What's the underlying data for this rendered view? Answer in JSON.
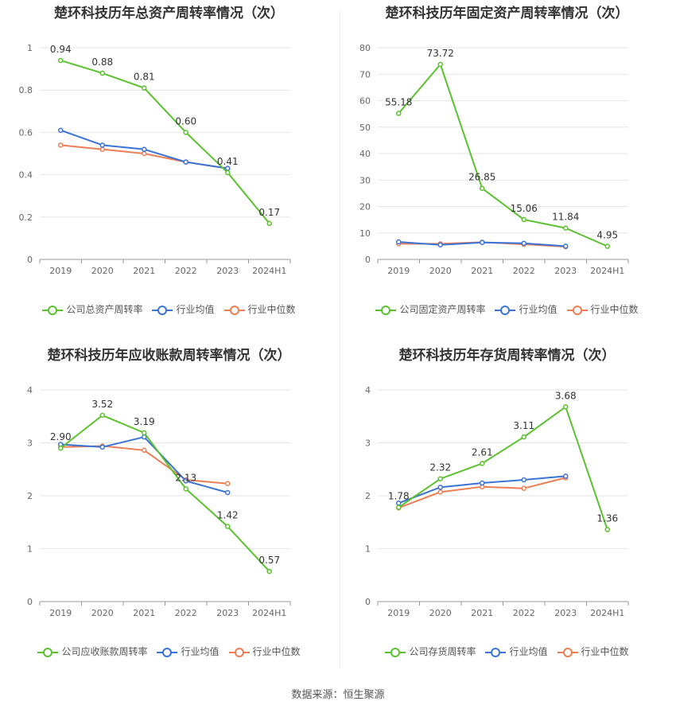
{
  "colors": {
    "company": "#5cc12f",
    "industry_avg": "#3b74d6",
    "industry_median": "#ec7f55",
    "grid": "#e6e6e6",
    "axis": "#999999"
  },
  "footer": {
    "source": "数据来源：恒生聚源"
  },
  "chart_data": [
    {
      "type": "line",
      "title": "楚环科技历年总资产周转率情况（次）",
      "categories": [
        "2019",
        "2020",
        "2021",
        "2022",
        "2023",
        "2024H1"
      ],
      "ylim": [
        0,
        1
      ],
      "yticks": [
        0,
        0.2,
        0.4,
        0.6,
        0.8,
        1
      ],
      "ytick_labels": [
        "0",
        "0.2",
        "0.4",
        "0.6",
        "0.8",
        "1"
      ],
      "grid": true,
      "legend_position": "bottom",
      "series": [
        {
          "name": "公司总资产周转率",
          "role": "company",
          "values": [
            0.94,
            0.88,
            0.81,
            0.6,
            0.41,
            0.17
          ],
          "labels": [
            "0.94",
            "0.88",
            "0.81",
            "0.60",
            "0.41",
            "0.17"
          ]
        },
        {
          "name": "行业均值",
          "role": "industry_avg",
          "values": [
            0.61,
            0.54,
            0.52,
            0.46,
            0.43,
            null
          ]
        },
        {
          "name": "行业中位数",
          "role": "industry_median",
          "values": [
            0.54,
            0.52,
            0.5,
            0.46,
            0.43,
            null
          ]
        }
      ]
    },
    {
      "type": "line",
      "title": "楚环科技历年固定资产周转率情况（次）",
      "categories": [
        "2019",
        "2020",
        "2021",
        "2022",
        "2023",
        "2024H1"
      ],
      "ylim": [
        0,
        80
      ],
      "yticks": [
        0,
        10,
        20,
        30,
        40,
        50,
        60,
        70,
        80
      ],
      "ytick_labels": [
        "0",
        "10",
        "20",
        "30",
        "40",
        "50",
        "60",
        "70",
        "80"
      ],
      "grid": true,
      "legend_position": "bottom",
      "series": [
        {
          "name": "公司固定资产周转率",
          "role": "company",
          "values": [
            55.18,
            73.72,
            26.85,
            15.06,
            11.84,
            4.95
          ],
          "labels": [
            "55.18",
            "73.72",
            "26.85",
            "15.06",
            "11.84",
            "4.95"
          ]
        },
        {
          "name": "行业均值",
          "role": "industry_avg",
          "values": [
            6.6,
            5.5,
            6.4,
            6.1,
            5.0,
            null
          ]
        },
        {
          "name": "行业中位数",
          "role": "industry_median",
          "values": [
            5.9,
            5.9,
            6.5,
            5.7,
            4.8,
            null
          ]
        }
      ]
    },
    {
      "type": "line",
      "title": "楚环科技历年应收账款周转率情况（次）",
      "categories": [
        "2019",
        "2020",
        "2021",
        "2022",
        "2023",
        "2024H1"
      ],
      "ylim": [
        0,
        4
      ],
      "yticks": [
        0,
        1,
        2,
        3,
        4
      ],
      "ytick_labels": [
        "0",
        "1",
        "2",
        "3",
        "4"
      ],
      "grid": true,
      "legend_position": "bottom",
      "series": [
        {
          "name": "公司应收账款周转率",
          "role": "company",
          "values": [
            2.9,
            3.52,
            3.19,
            2.13,
            1.42,
            0.57
          ],
          "labels": [
            "2.90",
            "3.52",
            "3.19",
            "2.13",
            "1.42",
            "0.57"
          ]
        },
        {
          "name": "行业均值",
          "role": "industry_avg",
          "values": [
            2.97,
            2.92,
            3.11,
            2.28,
            2.06,
            null
          ]
        },
        {
          "name": "行业中位数",
          "role": "industry_median",
          "values": [
            2.92,
            2.94,
            2.86,
            2.3,
            2.23,
            null
          ]
        }
      ]
    },
    {
      "type": "line",
      "title": "楚环科技历年存货周转率情况（次）",
      "categories": [
        "2019",
        "2020",
        "2021",
        "2022",
        "2023",
        "2024H1"
      ],
      "ylim": [
        0,
        4
      ],
      "yticks": [
        0,
        1,
        2,
        3,
        4
      ],
      "ytick_labels": [
        "0",
        "1",
        "2",
        "3",
        "4"
      ],
      "grid": true,
      "legend_position": "bottom",
      "series": [
        {
          "name": "公司存货周转率",
          "role": "company",
          "values": [
            1.78,
            2.32,
            2.61,
            3.11,
            3.68,
            1.36
          ],
          "labels": [
            "1.78",
            "2.32",
            "2.61",
            "3.11",
            "3.68",
            "1.36"
          ]
        },
        {
          "name": "行业均值",
          "role": "industry_avg",
          "values": [
            1.86,
            2.16,
            2.24,
            2.3,
            2.37,
            null
          ]
        },
        {
          "name": "行业中位数",
          "role": "industry_median",
          "values": [
            1.77,
            2.07,
            2.17,
            2.14,
            2.34,
            null
          ]
        }
      ]
    }
  ]
}
